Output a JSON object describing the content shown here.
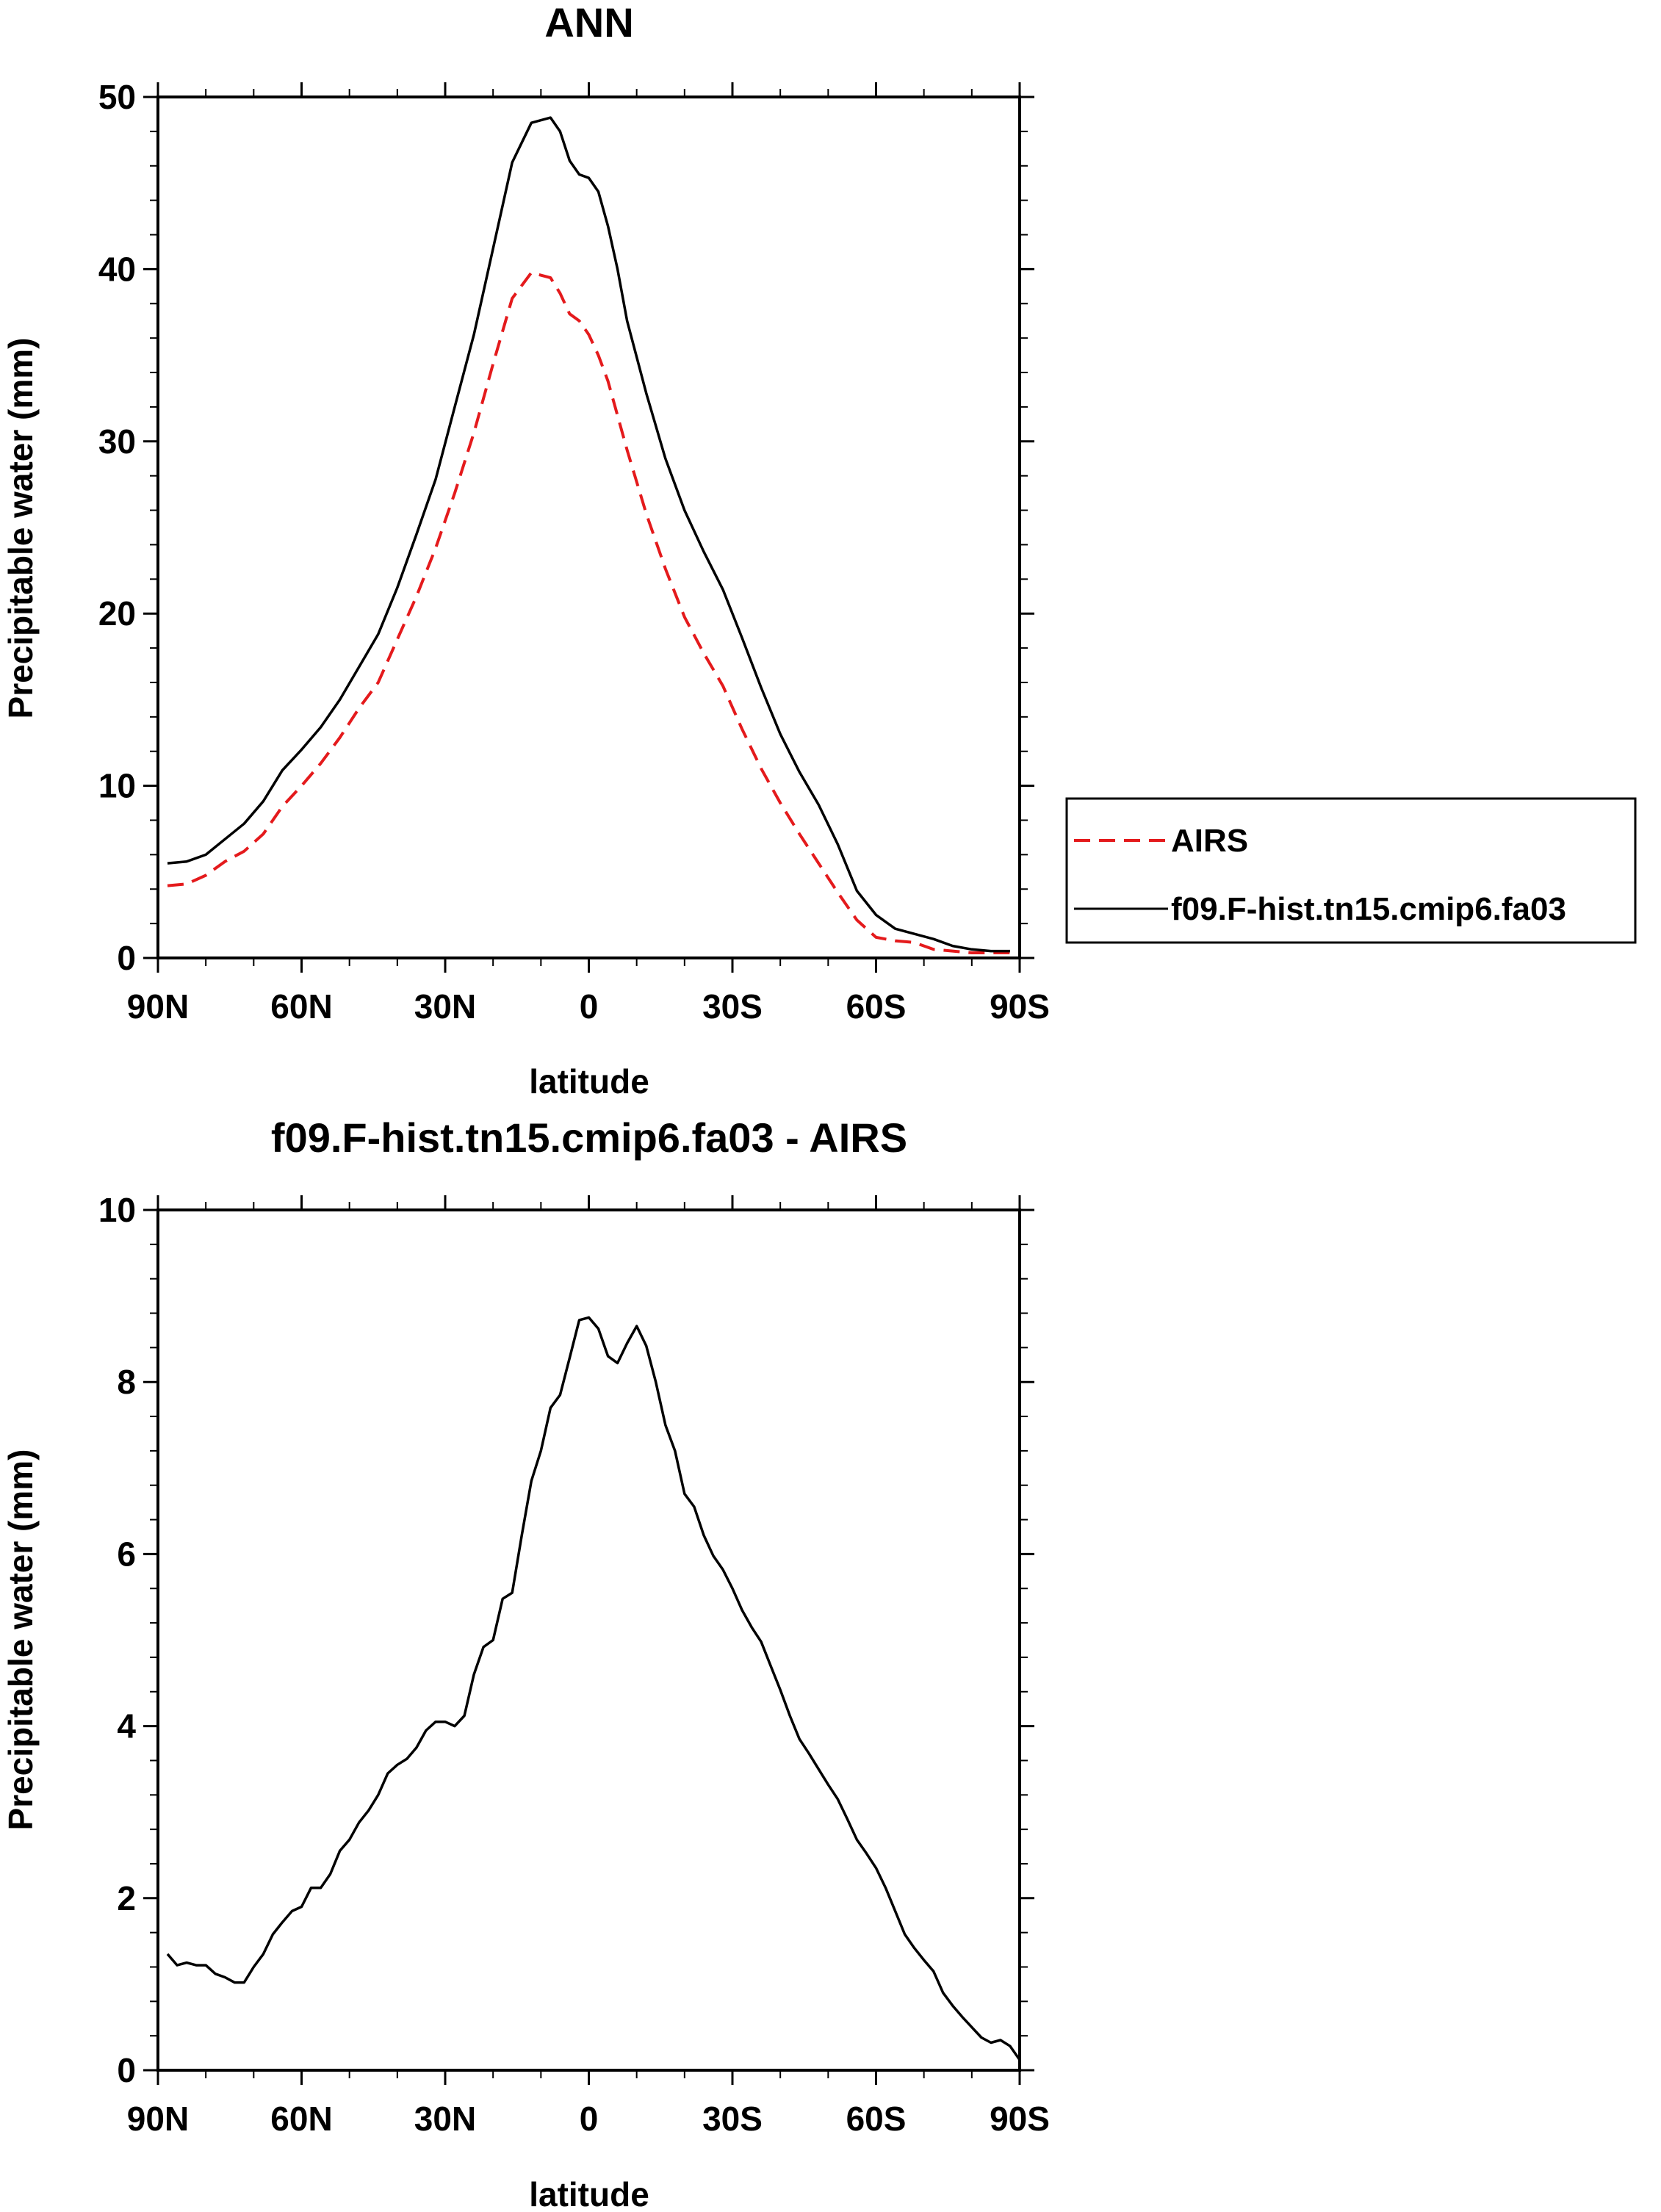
{
  "chart_data": [
    {
      "type": "line",
      "title": "ANN",
      "xlabel": "latitude",
      "ylabel": "Precipitable water (mm)",
      "xlim": [
        90,
        -90
      ],
      "ylim": [
        0,
        50
      ],
      "xticks": [
        90,
        60,
        30,
        0,
        -30,
        -60,
        -90
      ],
      "xtick_labels": [
        "90N",
        "60N",
        "30N",
        "0",
        "30S",
        "60S",
        "90S"
      ],
      "yticks": [
        0,
        10,
        20,
        30,
        40,
        50
      ],
      "ytick_labels": [
        "0",
        "10",
        "20",
        "30",
        "40",
        "50"
      ],
      "grid": false,
      "legend_position": "right",
      "x": [
        88,
        84,
        80,
        76,
        72,
        68,
        64,
        60,
        56,
        52,
        48,
        44,
        40,
        36,
        32,
        28,
        24,
        20,
        16,
        12,
        8,
        6,
        4,
        2,
        0,
        -2,
        -4,
        -6,
        -8,
        -12,
        -16,
        -20,
        -24,
        -28,
        -32,
        -36,
        -40,
        -44,
        -48,
        -52,
        -56,
        -60,
        -64,
        -68,
        -72,
        -76,
        -80,
        -84,
        -88
      ],
      "series": [
        {
          "name": "AIRS",
          "color": "#e41a1c",
          "dash": "dashed",
          "values": [
            4.2,
            4.3,
            4.8,
            5.6,
            6.2,
            7.2,
            8.8,
            10.0,
            11.3,
            12.8,
            14.5,
            16.0,
            18.5,
            21.0,
            23.8,
            27.0,
            30.5,
            34.5,
            38.3,
            39.8,
            39.5,
            38.6,
            37.4,
            37.0,
            36.2,
            35.0,
            33.5,
            31.5,
            29.5,
            25.8,
            22.6,
            19.8,
            17.7,
            15.8,
            13.3,
            11.0,
            9.0,
            7.2,
            5.5,
            3.8,
            2.2,
            1.2,
            1.0,
            0.9,
            0.5,
            0.4,
            0.3,
            0.3,
            0.3
          ]
        },
        {
          "name": "f09.F-hist.tn15.cmip6.fa03",
          "color": "#000000",
          "dash": "solid",
          "values": [
            5.5,
            5.6,
            6.0,
            6.9,
            7.8,
            9.1,
            10.9,
            12.1,
            13.4,
            15.0,
            16.9,
            18.8,
            21.5,
            24.6,
            27.8,
            32.0,
            36.2,
            41.2,
            46.2,
            48.5,
            48.8,
            48.0,
            46.3,
            45.5,
            45.3,
            44.5,
            42.5,
            40.0,
            37.0,
            32.8,
            29.0,
            26.0,
            23.6,
            21.4,
            18.6,
            15.7,
            13.0,
            10.8,
            8.9,
            6.6,
            3.9,
            2.5,
            1.7,
            1.4,
            1.1,
            0.7,
            0.5,
            0.4,
            0.4
          ]
        }
      ]
    },
    {
      "type": "line",
      "title": "f09.F-hist.tn15.cmip6.fa03 - AIRS",
      "xlabel": "latitude",
      "ylabel": "Precipitable water (mm)",
      "xlim": [
        90,
        -90
      ],
      "ylim": [
        0,
        10
      ],
      "xticks": [
        90,
        60,
        30,
        0,
        -30,
        -60,
        -90
      ],
      "xtick_labels": [
        "90N",
        "60N",
        "30N",
        "0",
        "30S",
        "60S",
        "90S"
      ],
      "yticks": [
        0,
        2,
        4,
        6,
        8,
        10
      ],
      "ytick_labels": [
        "0",
        "2",
        "4",
        "6",
        "8",
        "10"
      ],
      "grid": false,
      "x": [
        88,
        86,
        84,
        82,
        80,
        78,
        76,
        74,
        72,
        70,
        68,
        66,
        64,
        62,
        60,
        58,
        56,
        54,
        52,
        50,
        48,
        46,
        44,
        42,
        40,
        38,
        36,
        34,
        32,
        30,
        28,
        26,
        24,
        22,
        20,
        18,
        16,
        14,
        12,
        10,
        8,
        6,
        4,
        2,
        0,
        -2,
        -4,
        -6,
        -8,
        -10,
        -12,
        -14,
        -16,
        -18,
        -20,
        -22,
        -24,
        -26,
        -28,
        -30,
        -32,
        -34,
        -36,
        -38,
        -40,
        -42,
        -44,
        -46,
        -48,
        -50,
        -52,
        -54,
        -56,
        -58,
        -60,
        -62,
        -64,
        -66,
        -68,
        -70,
        -72,
        -74,
        -76,
        -78,
        -80,
        -82,
        -84,
        -86,
        -88,
        -90
      ],
      "series": [
        {
          "name": "f09.F-hist.tn15.cmip6.fa03 - AIRS",
          "color": "#000000",
          "dash": "solid",
          "values": [
            1.35,
            1.22,
            1.25,
            1.22,
            1.22,
            1.12,
            1.08,
            1.02,
            1.02,
            1.2,
            1.35,
            1.58,
            1.72,
            1.85,
            1.9,
            2.12,
            2.12,
            2.28,
            2.55,
            2.68,
            2.88,
            3.02,
            3.2,
            3.45,
            3.55,
            3.62,
            3.75,
            3.95,
            4.05,
            4.05,
            4.0,
            4.12,
            4.6,
            4.92,
            5.0,
            5.48,
            5.55,
            6.22,
            6.85,
            7.2,
            7.7,
            7.85,
            8.28,
            8.72,
            8.75,
            8.62,
            8.3,
            8.22,
            8.45,
            8.65,
            8.42,
            8.0,
            7.5,
            7.2,
            6.7,
            6.55,
            6.22,
            5.98,
            5.82,
            5.6,
            5.35,
            5.15,
            4.98,
            4.7,
            4.42,
            4.12,
            3.85,
            3.68,
            3.5,
            3.32,
            3.15,
            2.92,
            2.68,
            2.52,
            2.35,
            2.12,
            1.85,
            1.58,
            1.42,
            1.28,
            1.15,
            0.9,
            0.75,
            0.62,
            0.5,
            0.38,
            0.32,
            0.35,
            0.28,
            0.12
          ]
        }
      ]
    }
  ]
}
